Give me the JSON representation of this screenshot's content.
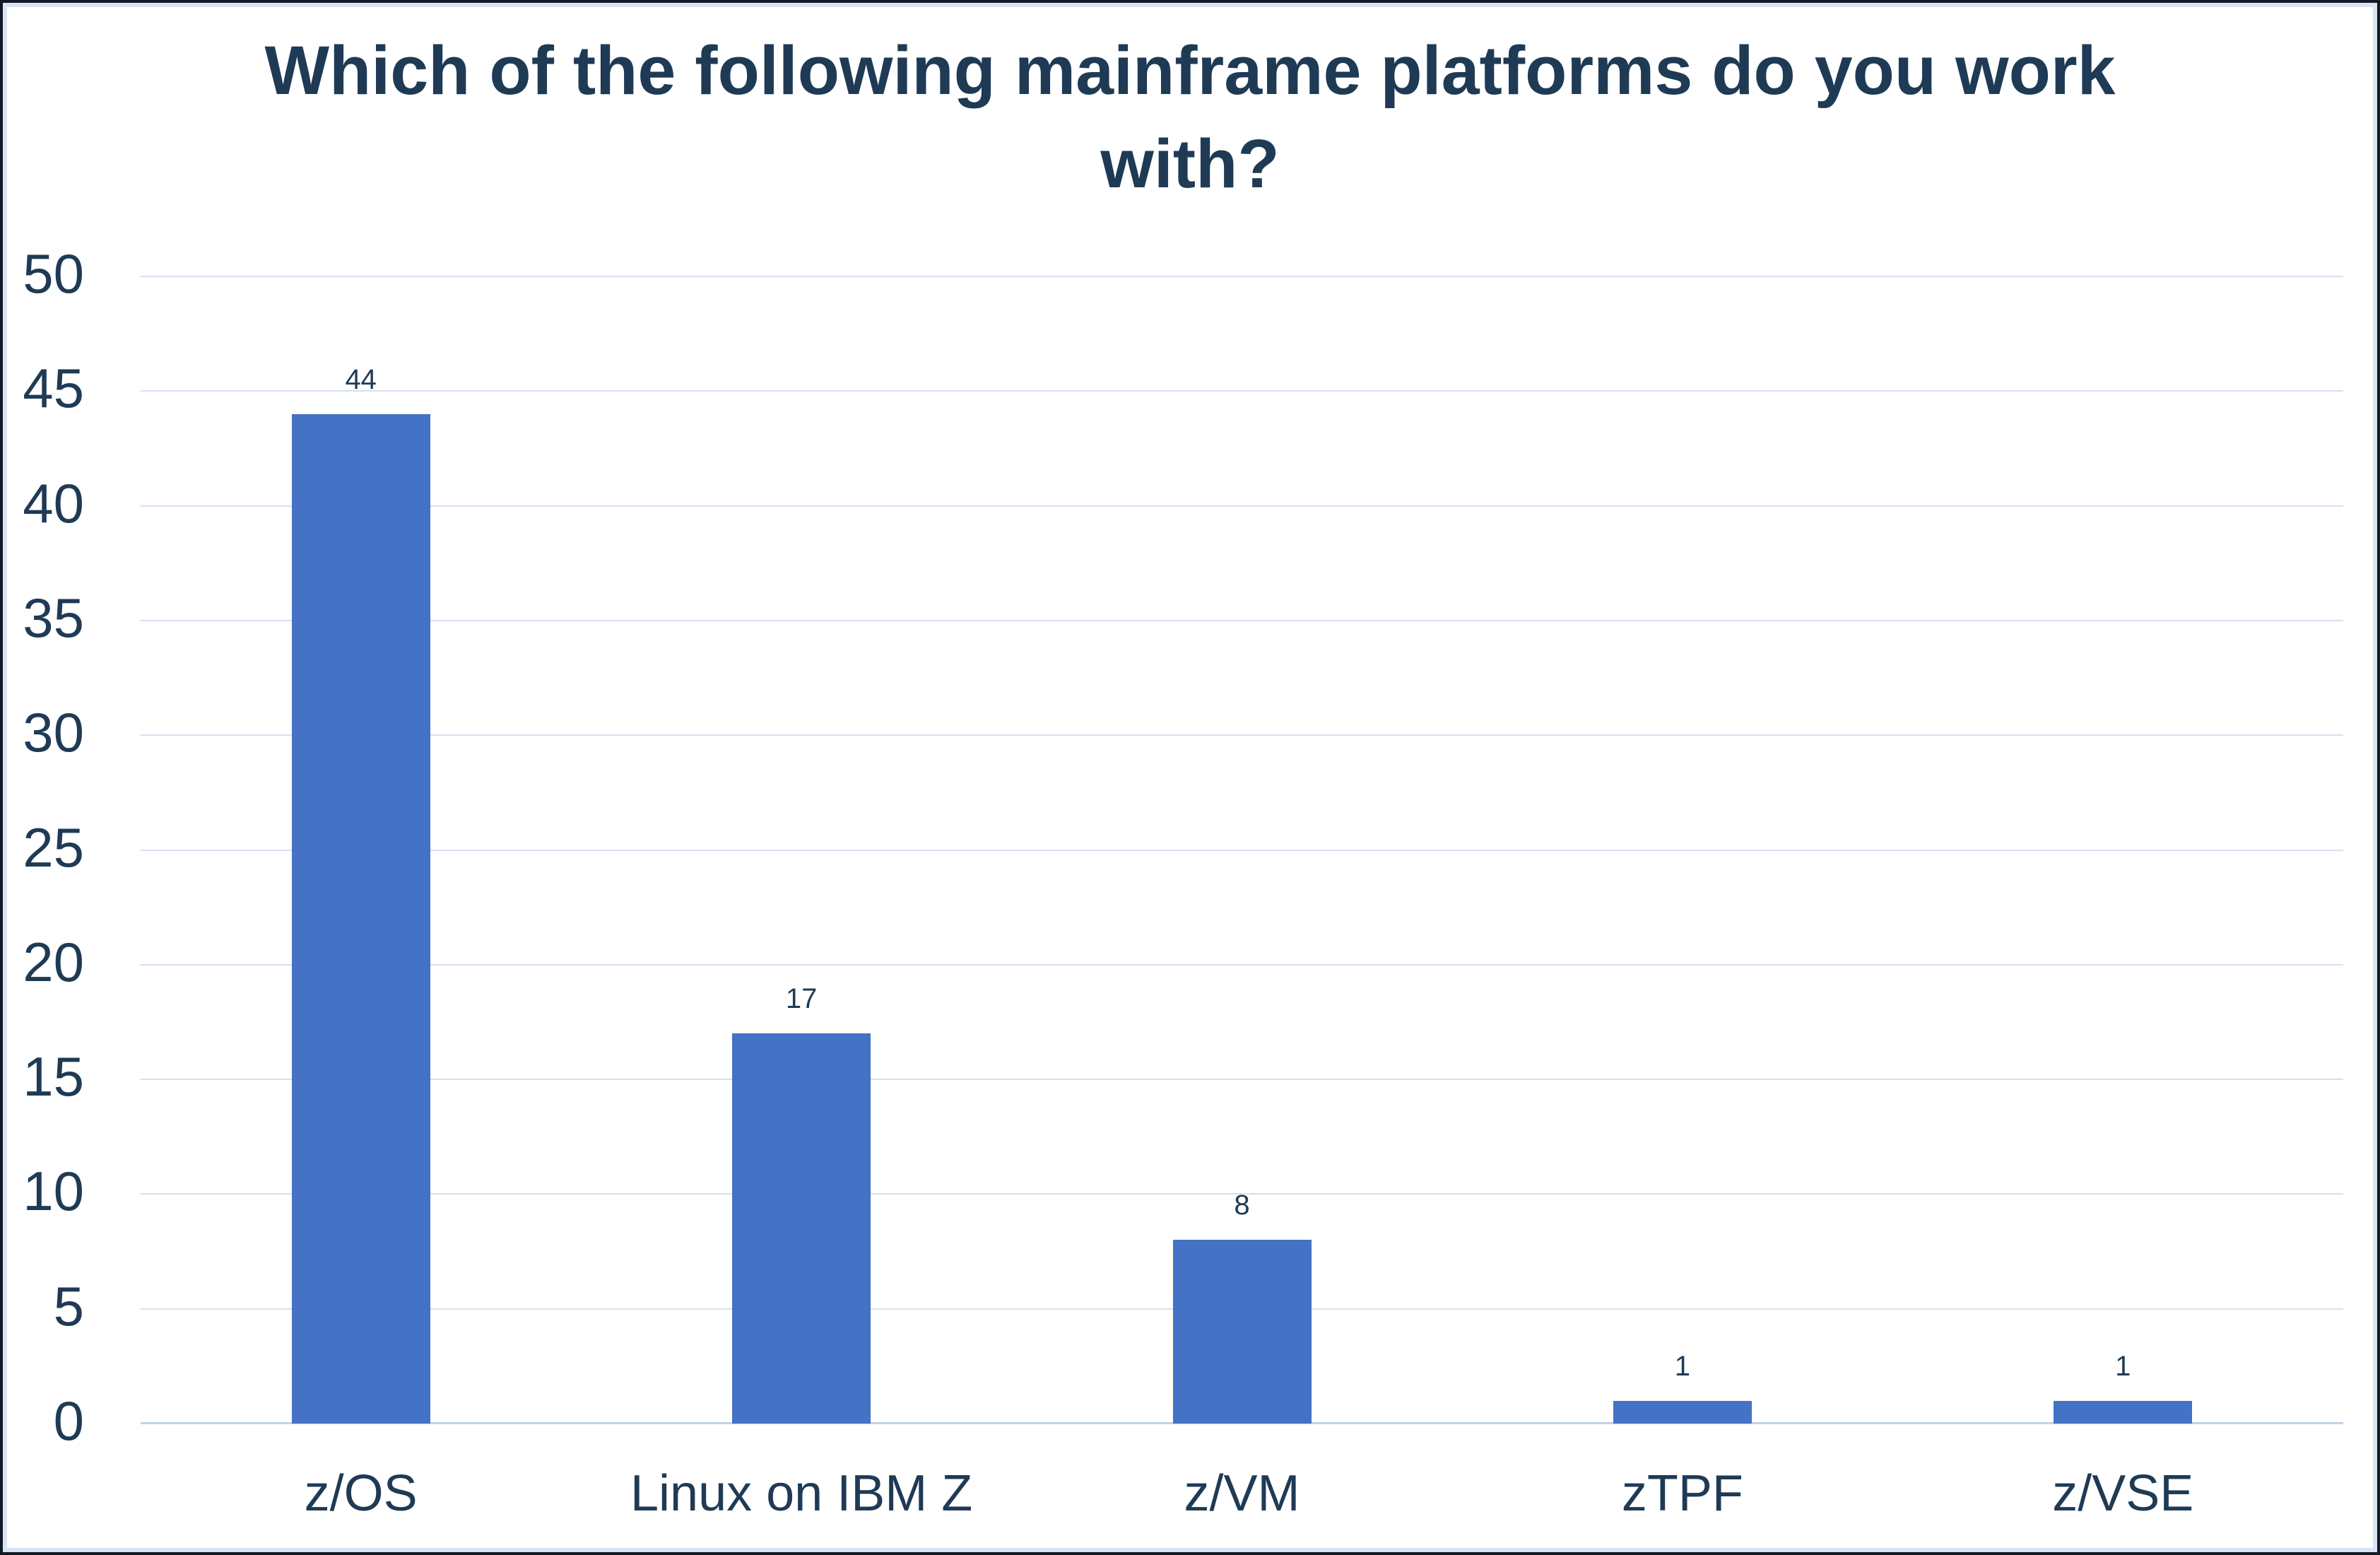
{
  "chart_data": {
    "type": "bar",
    "title": "Which of the following mainframe platforms do you work with?",
    "title_lines": [
      "Which of the following mainframe platforms do you work",
      "with?"
    ],
    "categories": [
      "z/OS",
      "Linux on IBM Z",
      "z/VM",
      "zTPF",
      "z/VSE"
    ],
    "values": [
      44,
      17,
      8,
      1,
      1
    ],
    "data_labels": [
      "44",
      "17",
      "8",
      "1",
      "1"
    ],
    "xlabel": "",
    "ylabel": "",
    "ylim": [
      0,
      50
    ],
    "ytick_step": 5,
    "yticks": [
      0,
      5,
      10,
      15,
      20,
      25,
      30,
      35,
      40,
      45,
      50
    ],
    "grid": true,
    "legend_position": "none",
    "colors": {
      "bar_fill": "#4472C4",
      "gridline": "#D5E0F1",
      "axis_line": "#C2D3EA",
      "text": "#1F3A55",
      "outer_border": "#131A23",
      "inner_border": "#D9E4F4",
      "background": "#FFFFFF"
    }
  }
}
